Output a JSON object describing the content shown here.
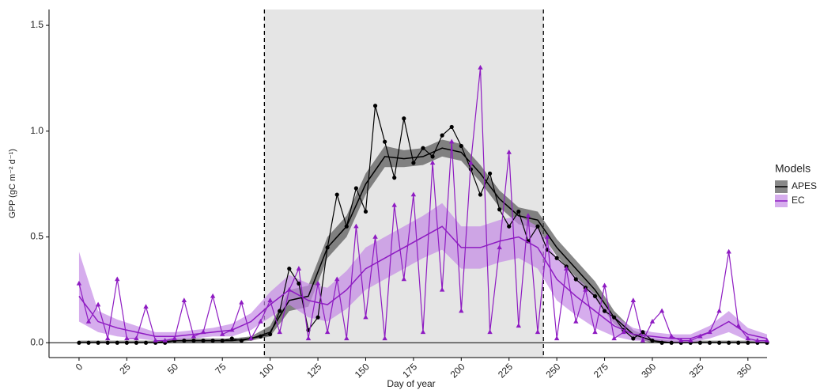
{
  "chart_data": {
    "type": "line",
    "x_label": "Day of year",
    "y_label": "GPP (gC m⁻² d⁻¹)",
    "legend_title": "Models",
    "xlim": [
      -15.7,
      360
    ],
    "ylim": [
      -0.07,
      1.575
    ],
    "xticks": [
      0,
      25,
      50,
      75,
      100,
      125,
      150,
      175,
      200,
      225,
      250,
      275,
      300,
      325,
      350
    ],
    "yticks": [
      {
        "value": 0,
        "label": "0.0"
      },
      0.5,
      {
        "value": 1,
        "label": "1.0"
      },
      1.5
    ],
    "shaded_range": [
      97,
      243
    ],
    "x": [
      0,
      5,
      10,
      15,
      20,
      25,
      30,
      35,
      40,
      45,
      50,
      55,
      60,
      65,
      70,
      75,
      80,
      85,
      90,
      95,
      100,
      105,
      110,
      115,
      120,
      125,
      130,
      135,
      140,
      145,
      150,
      155,
      160,
      165,
      170,
      175,
      180,
      185,
      190,
      195,
      200,
      205,
      210,
      215,
      220,
      225,
      230,
      235,
      240,
      245,
      250,
      255,
      260,
      265,
      270,
      275,
      280,
      285,
      290,
      295,
      300,
      305,
      310,
      315,
      320,
      325,
      330,
      335,
      340,
      345,
      350,
      355,
      360
    ],
    "smooth_x": [
      0,
      10,
      20,
      30,
      40,
      50,
      60,
      70,
      80,
      90,
      100,
      110,
      120,
      130,
      140,
      150,
      160,
      170,
      180,
      190,
      200,
      210,
      220,
      230,
      240,
      250,
      260,
      270,
      280,
      290,
      300,
      310,
      320,
      330,
      340,
      350,
      360
    ],
    "series": [
      {
        "name": "APES",
        "color": "#000000",
        "band_color": "#555555",
        "marker": "circle",
        "values": [
          0,
          0,
          0,
          0,
          0,
          0,
          0,
          0,
          0,
          0,
          0.01,
          0.01,
          0.01,
          0.01,
          0.01,
          0.01,
          0.02,
          0.01,
          0.02,
          0.03,
          0.04,
          0.15,
          0.35,
          0.28,
          0.06,
          0.12,
          0.45,
          0.7,
          0.55,
          0.73,
          0.62,
          1.12,
          0.95,
          0.78,
          1.06,
          0.85,
          0.92,
          0.88,
          0.98,
          1.02,
          0.93,
          0.82,
          0.7,
          0.8,
          0.63,
          0.55,
          0.62,
          0.48,
          0.55,
          0.44,
          0.4,
          0.36,
          0.3,
          0.26,
          0.22,
          0.15,
          0.12,
          0.06,
          0.02,
          0.05,
          0.01,
          0,
          0,
          0,
          0,
          0,
          0,
          0,
          0,
          0,
          0,
          0,
          0
        ],
        "smooth": [
          0,
          0,
          0,
          0,
          0,
          0.01,
          0.01,
          0.01,
          0.01,
          0.02,
          0.05,
          0.2,
          0.22,
          0.45,
          0.55,
          0.75,
          0.88,
          0.87,
          0.88,
          0.92,
          0.9,
          0.8,
          0.68,
          0.6,
          0.58,
          0.45,
          0.35,
          0.25,
          0.12,
          0.04,
          0.01,
          0,
          0,
          0,
          0,
          0,
          0
        ],
        "lower": [
          0,
          0,
          0,
          0,
          0,
          0,
          0,
          0,
          0,
          0.01,
          0.03,
          0.15,
          0.17,
          0.4,
          0.5,
          0.7,
          0.83,
          0.83,
          0.84,
          0.88,
          0.86,
          0.76,
          0.64,
          0.56,
          0.54,
          0.41,
          0.31,
          0.21,
          0.09,
          0.02,
          0,
          0,
          0,
          0,
          0,
          0,
          0
        ],
        "upper": [
          0.01,
          0.01,
          0.01,
          0.01,
          0.01,
          0.02,
          0.02,
          0.02,
          0.02,
          0.03,
          0.08,
          0.25,
          0.27,
          0.5,
          0.6,
          0.8,
          0.93,
          0.91,
          0.92,
          0.96,
          0.94,
          0.84,
          0.72,
          0.64,
          0.62,
          0.49,
          0.39,
          0.29,
          0.15,
          0.06,
          0.02,
          0.01,
          0.01,
          0.01,
          0.01,
          0.01,
          0.01
        ]
      },
      {
        "name": "EC",
        "color": "#8e1bc2",
        "band_color": "#c58ae6",
        "marker": "triangle",
        "values": [
          0.28,
          0.1,
          0.18,
          0.02,
          0.3,
          0.02,
          0.02,
          0.17,
          0.01,
          0.01,
          0.02,
          0.2,
          0.03,
          0.05,
          0.22,
          0.04,
          0.06,
          0.19,
          0.02,
          0.1,
          0.2,
          0.05,
          0.25,
          0.35,
          0.02,
          0.28,
          0.05,
          0.3,
          0.02,
          0.55,
          0.12,
          0.5,
          0.02,
          0.65,
          0.3,
          0.7,
          0.05,
          0.85,
          0.25,
          0.95,
          0.15,
          0.85,
          1.3,
          0.05,
          0.45,
          0.9,
          0.08,
          0.6,
          0.05,
          0.5,
          0.02,
          0.35,
          0.1,
          0.25,
          0.05,
          0.27,
          0.02,
          0.05,
          0.2,
          0.01,
          0.1,
          0.15,
          0.03,
          0.01,
          0.01,
          0.03,
          0.05,
          0.15,
          0.43,
          0.08,
          0.02,
          0.01,
          0.01
        ],
        "smooth": [
          0.22,
          0.1,
          0.07,
          0.05,
          0.03,
          0.03,
          0.04,
          0.05,
          0.06,
          0.1,
          0.18,
          0.25,
          0.2,
          0.18,
          0.25,
          0.35,
          0.4,
          0.45,
          0.5,
          0.55,
          0.45,
          0.45,
          0.48,
          0.5,
          0.45,
          0.3,
          0.22,
          0.15,
          0.08,
          0.04,
          0.03,
          0.02,
          0.02,
          0.05,
          0.1,
          0.04,
          0.02
        ],
        "lower": [
          0.1,
          0.05,
          0.03,
          0.02,
          0.01,
          0.01,
          0.02,
          0.03,
          0.03,
          0.06,
          0.12,
          0.18,
          0.12,
          0.1,
          0.16,
          0.25,
          0.3,
          0.35,
          0.4,
          0.44,
          0.35,
          0.35,
          0.38,
          0.4,
          0.35,
          0.2,
          0.13,
          0.07,
          0.03,
          0.01,
          0.01,
          0,
          0,
          0.02,
          0.05,
          0.01,
          0
        ],
        "upper": [
          0.43,
          0.15,
          0.11,
          0.08,
          0.05,
          0.05,
          0.06,
          0.07,
          0.09,
          0.14,
          0.24,
          0.32,
          0.28,
          0.26,
          0.34,
          0.45,
          0.5,
          0.55,
          0.6,
          0.66,
          0.55,
          0.55,
          0.58,
          0.6,
          0.55,
          0.4,
          0.31,
          0.23,
          0.13,
          0.07,
          0.05,
          0.04,
          0.04,
          0.08,
          0.15,
          0.07,
          0.04
        ]
      }
    ]
  }
}
